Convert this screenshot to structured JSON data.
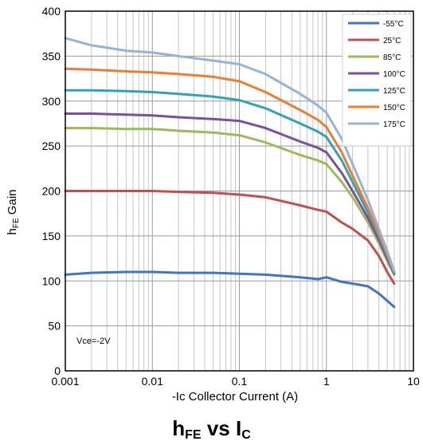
{
  "chart_data": {
    "type": "line",
    "title": "",
    "ylabel": {
      "main": "h",
      "sub": "FE",
      "rest": " Gain"
    },
    "xlabel": "-Ic Collector Current (A)",
    "xscale": "log",
    "xlim": [
      0.001,
      10
    ],
    "ylim": [
      0,
      400
    ],
    "x_ticks": [
      0.001,
      0.01,
      0.1,
      1,
      10
    ],
    "x_tick_labels": [
      "0.001",
      "0.01",
      "0.1",
      "1",
      "10"
    ],
    "y_ticks": [
      0,
      50,
      100,
      150,
      200,
      250,
      300,
      350,
      400
    ],
    "y_tick_labels": [
      "0",
      "50",
      "100",
      "150",
      "200",
      "250",
      "300",
      "350",
      "400"
    ],
    "grid": true,
    "legend_position": "top-right",
    "annotation": "Vce=-2V",
    "series": [
      {
        "name": "-55°C",
        "color": "#4472c4",
        "x": [
          0.001,
          0.002,
          0.005,
          0.01,
          0.02,
          0.05,
          0.1,
          0.2,
          0.5,
          0.8,
          1,
          1.5,
          2,
          3,
          4,
          5,
          6
        ],
        "y": [
          107,
          109,
          110,
          110,
          109,
          109,
          108,
          107,
          104,
          102,
          104,
          99,
          97,
          94,
          86,
          78,
          71
        ]
      },
      {
        "name": "25°C",
        "color": "#c0504d",
        "x": [
          0.001,
          0.002,
          0.005,
          0.01,
          0.02,
          0.05,
          0.1,
          0.2,
          0.5,
          0.8,
          1,
          1.5,
          2,
          3,
          4,
          5,
          6
        ],
        "y": [
          200,
          200,
          200,
          200,
          199,
          198,
          196,
          193,
          184,
          179,
          177,
          165,
          158,
          145,
          128,
          110,
          97
        ]
      },
      {
        "name": "85°C",
        "color": "#9bbb59",
        "x": [
          0.001,
          0.002,
          0.005,
          0.01,
          0.02,
          0.05,
          0.1,
          0.2,
          0.5,
          0.8,
          1,
          1.5,
          2,
          3,
          4,
          5,
          6
        ],
        "y": [
          270,
          270,
          269,
          269,
          267,
          265,
          262,
          254,
          240,
          234,
          230,
          210,
          193,
          165,
          142,
          122,
          107
        ]
      },
      {
        "name": "100°C",
        "color": "#7a4f9e",
        "x": [
          0.001,
          0.002,
          0.005,
          0.01,
          0.02,
          0.05,
          0.1,
          0.2,
          0.5,
          0.8,
          1,
          1.5,
          2,
          3,
          4,
          5,
          6
        ],
        "y": [
          286,
          286,
          285,
          284,
          282,
          280,
          278,
          270,
          255,
          248,
          243,
          220,
          200,
          170,
          146,
          125,
          108
        ]
      },
      {
        "name": "125°C",
        "color": "#31a2b8",
        "x": [
          0.001,
          0.002,
          0.005,
          0.01,
          0.02,
          0.05,
          0.1,
          0.2,
          0.5,
          0.8,
          1,
          1.5,
          2,
          3,
          4,
          5,
          6
        ],
        "y": [
          312,
          312,
          311,
          310,
          308,
          305,
          301,
          292,
          275,
          266,
          260,
          234,
          210,
          176,
          150,
          128,
          109
        ]
      },
      {
        "name": "150°C",
        "color": "#ed7d31",
        "x": [
          0.001,
          0.002,
          0.005,
          0.01,
          0.02,
          0.05,
          0.1,
          0.2,
          0.5,
          0.8,
          1,
          1.5,
          2,
          3,
          4,
          5,
          6
        ],
        "y": [
          336,
          335,
          333,
          332,
          330,
          327,
          322,
          310,
          290,
          279,
          271,
          243,
          217,
          181,
          153,
          130,
          110
        ]
      },
      {
        "name": "175°C",
        "color": "#95b3d7",
        "x": [
          0.001,
          0.002,
          0.005,
          0.01,
          0.02,
          0.05,
          0.1,
          0.2,
          0.5,
          0.8,
          1,
          1.5,
          2,
          3,
          4,
          5,
          6
        ],
        "y": [
          370,
          362,
          356,
          354,
          350,
          345,
          341,
          330,
          308,
          295,
          287,
          258,
          230,
          190,
          158,
          133,
          111
        ]
      }
    ]
  },
  "figure_title": {
    "h": "h",
    "fe": "FE",
    "vs": " vs I",
    "c": "C"
  }
}
